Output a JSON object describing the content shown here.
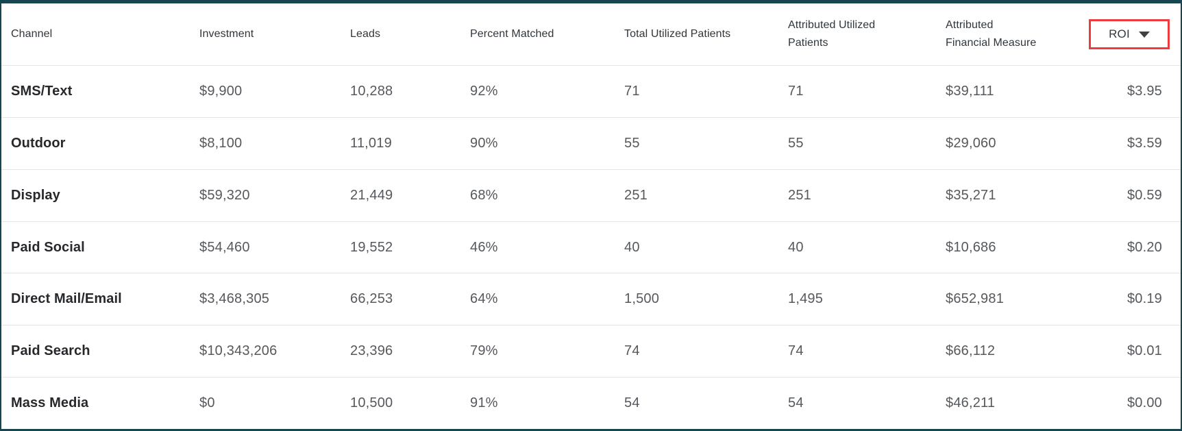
{
  "colors": {
    "frame_border": "#164750",
    "row_divider": "#e4e4e4",
    "roi_highlight_box": "#ee3b3e",
    "header_text": "#2e353b",
    "channel_text": "#26282b",
    "value_text": "#55585c"
  },
  "table": {
    "header": {
      "channel": "Channel",
      "investment": "Investment",
      "leads": "Leads",
      "percent_matched": "Percent Matched",
      "total_utilized_patients": "Total Utilized Patients",
      "attributed_utilized_patients": "Attributed Utilized Patients",
      "attributed_financial_measure": "Attributed Financial Measure",
      "roi": "ROI"
    },
    "sort": {
      "column": "ROI",
      "icon": "caret-down-icon",
      "annotation": "red highlight box around ROI header"
    },
    "rows": [
      {
        "channel": "SMS/Text",
        "investment": "$9,900",
        "leads": "10,288",
        "percent_matched": "92%",
        "total_utilized_patients": "71",
        "attributed_utilized_patients": "71",
        "attributed_financial_measure": "$39,111",
        "roi": "$3.95"
      },
      {
        "channel": "Outdoor",
        "investment": "$8,100",
        "leads": "11,019",
        "percent_matched": "90%",
        "total_utilized_patients": "55",
        "attributed_utilized_patients": "55",
        "attributed_financial_measure": "$29,060",
        "roi": "$3.59"
      },
      {
        "channel": "Display",
        "investment": "$59,320",
        "leads": "21,449",
        "percent_matched": "68%",
        "total_utilized_patients": "251",
        "attributed_utilized_patients": "251",
        "attributed_financial_measure": "$35,271",
        "roi": "$0.59"
      },
      {
        "channel": "Paid Social",
        "investment": "$54,460",
        "leads": "19,552",
        "percent_matched": "46%",
        "total_utilized_patients": "40",
        "attributed_utilized_patients": "40",
        "attributed_financial_measure": "$10,686",
        "roi": "$0.20"
      },
      {
        "channel": "Direct Mail/Email",
        "investment": "$3,468,305",
        "leads": "66,253",
        "percent_matched": "64%",
        "total_utilized_patients": "1,500",
        "attributed_utilized_patients": "1,495",
        "attributed_financial_measure": "$652,981",
        "roi": "$0.19"
      },
      {
        "channel": "Paid Search",
        "investment": "$10,343,206",
        "leads": "23,396",
        "percent_matched": "79%",
        "total_utilized_patients": "74",
        "attributed_utilized_patients": "74",
        "attributed_financial_measure": "$66,112",
        "roi": "$0.01"
      },
      {
        "channel": "Mass Media",
        "investment": "$0",
        "leads": "10,500",
        "percent_matched": "91%",
        "total_utilized_patients": "54",
        "attributed_utilized_patients": "54",
        "attributed_financial_measure": "$46,211",
        "roi": "$0.00"
      }
    ]
  }
}
